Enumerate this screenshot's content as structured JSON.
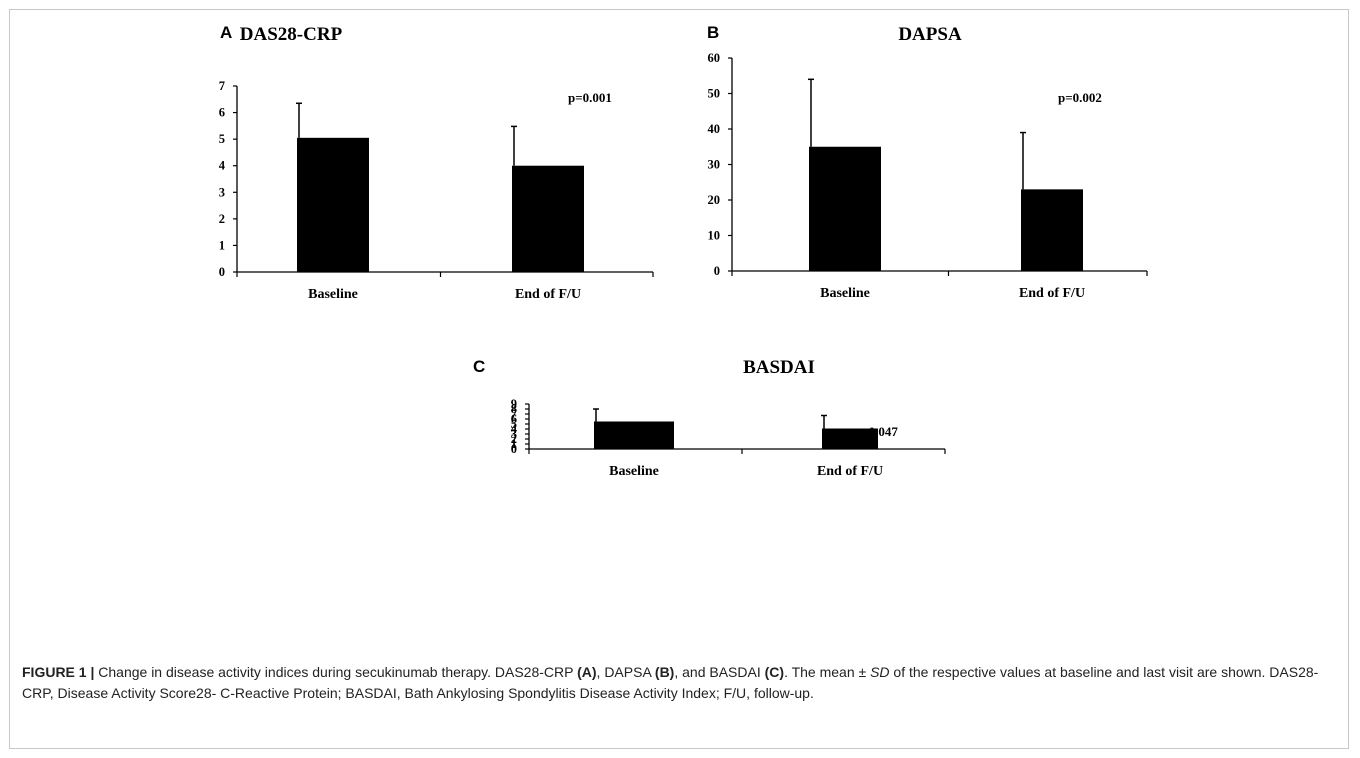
{
  "chart_data": [
    {
      "panel": "A",
      "type": "bar",
      "title": "DAS28-CRP",
      "categories": [
        "Baseline",
        "End of F/U"
      ],
      "values": [
        5.05,
        4.0
      ],
      "error_upper": [
        6.35,
        5.48
      ],
      "ylim": [
        0,
        7
      ],
      "yticks": [
        "0",
        "1",
        "2",
        "3",
        "4",
        "5",
        "6",
        "7"
      ],
      "annotation": "p=0.001",
      "grid": false
    },
    {
      "panel": "B",
      "type": "bar",
      "title": "DAPSA",
      "categories": [
        "Baseline",
        "End of F/U"
      ],
      "values": [
        35,
        23
      ],
      "error_upper": [
        54,
        39
      ],
      "ylim": [
        0,
        60
      ],
      "yticks": [
        "0",
        "10",
        "20",
        "30",
        "40",
        "50",
        "60"
      ],
      "annotation": "p=0.002",
      "grid": false
    },
    {
      "panel": "C",
      "type": "bar",
      "title": "BASDAI",
      "categories": [
        "Baseline",
        "End of F/U"
      ],
      "values": [
        5.5,
        4.1
      ],
      "error_upper": [
        8.0,
        6.7
      ],
      "ylim": [
        0,
        9
      ],
      "yticks": [
        "0",
        "1",
        "2",
        "3",
        "4",
        "5",
        "6",
        "7",
        "8",
        "9"
      ],
      "annotation": "p=0.047",
      "grid": false
    }
  ],
  "caption": {
    "label": "FIGURE 1 |",
    "seg1": " Change in disease activity indices during secukinumab therapy. DAS28-CRP ",
    "ref_a": "(A)",
    "seg2": ", DAPSA ",
    "ref_b": "(B)",
    "seg3": ", and BASDAI ",
    "ref_c": "(C)",
    "seg4": ". The mean ± ",
    "sd": "SD",
    "seg5": " of the respective values at baseline and last visit are shown. DAS28-CRP, Disease Activity Score28- C-Reactive Protein; BASDAI, Bath Ankylosing Spondylitis Disease Activity Index; F/U, follow-up."
  },
  "colors": {
    "bar": "#000000",
    "axis": "#000000",
    "border": "#c8c8c8"
  }
}
